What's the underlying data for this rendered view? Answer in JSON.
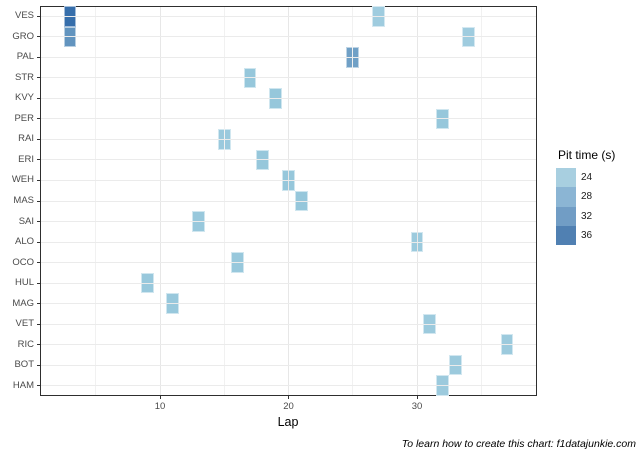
{
  "figure": {
    "caption": "To learn how to create this chart: f1datajunkie.com"
  },
  "chart_data": {
    "type": "heatmap",
    "title": "",
    "xlabel": "Lap",
    "ylabel": "",
    "x_axis": {
      "major_ticks": [
        10,
        20,
        30
      ],
      "minor_gridlines": [
        5,
        15,
        25,
        35
      ],
      "range": [
        0.7,
        39.3
      ]
    },
    "y_categories": [
      "VES",
      "GRO",
      "PAL",
      "STR",
      "KVY",
      "PER",
      "RAI",
      "ERI",
      "WEH",
      "MAS",
      "SAI",
      "ALO",
      "OCO",
      "HUL",
      "MAG",
      "VET",
      "RIC",
      "BOT",
      "HAM"
    ],
    "grid": "on",
    "legend": {
      "title": "Pit time (s)",
      "position": "right",
      "entries": [
        {
          "label": "24",
          "color": "#A8CFE0"
        },
        {
          "label": "28",
          "color": "#8BB5D4"
        },
        {
          "label": "32",
          "color": "#719DC5"
        },
        {
          "label": "36",
          "color": "#5080B2"
        }
      ]
    },
    "tiles": [
      {
        "driver": "VES",
        "lap": 3,
        "pit_time_est": 38,
        "color": "#366EAB"
      },
      {
        "driver": "VES",
        "lap": 27,
        "pit_time_est": 24,
        "color": "#9FCCDF"
      },
      {
        "driver": "GRO",
        "lap": 3,
        "pit_time_est": 33,
        "color": "#6294BF"
      },
      {
        "driver": "GRO",
        "lap": 34,
        "pit_time_est": 24,
        "color": "#9FCCDF"
      },
      {
        "driver": "PAL",
        "lap": 25,
        "pit_time_est": 30,
        "color": "#70A0C6"
      },
      {
        "driver": "STR",
        "lap": 17,
        "pit_time_est": 25,
        "color": "#96C7DB"
      },
      {
        "driver": "KVY",
        "lap": 19,
        "pit_time_est": 25,
        "color": "#96C7DB"
      },
      {
        "driver": "PER",
        "lap": 32,
        "pit_time_est": 25,
        "color": "#96C7DB"
      },
      {
        "driver": "RAI",
        "lap": 15,
        "pit_time_est": 25,
        "color": "#9AC9DD"
      },
      {
        "driver": "ERI",
        "lap": 18,
        "pit_time_est": 25,
        "color": "#96C7DB"
      },
      {
        "driver": "WEH",
        "lap": 20,
        "pit_time_est": 25,
        "color": "#96C7DB"
      },
      {
        "driver": "MAS",
        "lap": 21,
        "pit_time_est": 25,
        "color": "#96C7DB"
      },
      {
        "driver": "SAI",
        "lap": 13,
        "pit_time_est": 25,
        "color": "#98C8DC"
      },
      {
        "driver": "ALO",
        "lap": 30,
        "pit_time_est": 24,
        "color": "#9CCADD"
      },
      {
        "driver": "OCO",
        "lap": 16,
        "pit_time_est": 25,
        "color": "#98C8DC"
      },
      {
        "driver": "HUL",
        "lap": 9,
        "pit_time_est": 25,
        "color": "#98C8DC"
      },
      {
        "driver": "MAG",
        "lap": 11,
        "pit_time_est": 25,
        "color": "#98C8DC"
      },
      {
        "driver": "VET",
        "lap": 31,
        "pit_time_est": 24,
        "color": "#9CCADD"
      },
      {
        "driver": "RIC",
        "lap": 37,
        "pit_time_est": 24,
        "color": "#9CCADD"
      },
      {
        "driver": "BOT",
        "lap": 33,
        "pit_time_est": 24,
        "color": "#9CCADD"
      },
      {
        "driver": "HAM",
        "lap": 32,
        "pit_time_est": 24,
        "color": "#9CCADD"
      }
    ]
  }
}
